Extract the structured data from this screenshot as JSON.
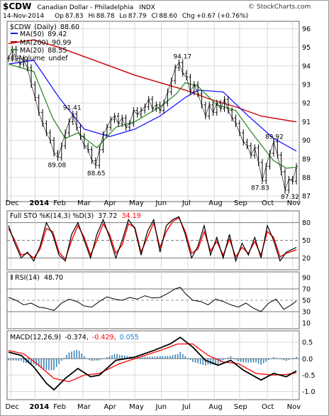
{
  "header": {
    "symbol": "$CDW",
    "name": "Canadian Dollar - Philadelphia",
    "exchange": "INDX",
    "date": "14-Nov-2014",
    "open_label": "Op",
    "open": "87.83",
    "high_label": "Hi",
    "high": "88.78",
    "low_label": "Lo",
    "low": "87.79",
    "close_label": "Cl",
    "close": "88.60",
    "change_label": "Chg",
    "change": "+0.67 (+0.76%)",
    "credit": "© StockCharts.com"
  },
  "colors": {
    "price": "#000000",
    "ma50": "#1a1aff",
    "ma200": "#cc0000",
    "ma20": "#2e8b2e",
    "signal": "#ff0000",
    "histogram": "#3d86b8",
    "rsi_fill": "#b09090",
    "grid": "#d9d9d9"
  },
  "chart_data": [
    {
      "type": "line",
      "panel": "price",
      "title_symbol": "$CDW",
      "title_name": "(Daily)",
      "title_value": "88.60",
      "series": [
        {
          "name": "MA(50)",
          "value": "89.42"
        },
        {
          "name": "MA(200)",
          "value": "90.99"
        },
        {
          "name": "MA(20)",
          "value": "88.55"
        },
        {
          "name": "Volume",
          "value": "undef"
        }
      ],
      "x_months": [
        "Dec",
        "2014",
        "Feb",
        "Mar",
        "Apr",
        "May",
        "Jun",
        "Jul",
        "Aug",
        "Sep",
        "Oct",
        "Nov"
      ],
      "y_ticks": [
        "96",
        "95",
        "94",
        "93",
        "92",
        "91",
        "90",
        "89",
        "88",
        "87"
      ],
      "ylim": [
        86.7,
        96.4
      ],
      "annotations": [
        "94.17",
        "91.41",
        "89.08",
        "88.65",
        "89.92",
        "87.83",
        "87.32"
      ],
      "close_path": [
        [
          0,
          94.4
        ],
        [
          3,
          94.9
        ],
        [
          6,
          94.4
        ],
        [
          9,
          94.1
        ],
        [
          12,
          94.3
        ],
        [
          15,
          93.9
        ],
        [
          18,
          93.0
        ],
        [
          21,
          92.3
        ],
        [
          24,
          91.5
        ],
        [
          27,
          90.9
        ],
        [
          30,
          90.4
        ],
        [
          33,
          90.0
        ],
        [
          36,
          89.3
        ],
        [
          39,
          89.08
        ],
        [
          42,
          89.7
        ],
        [
          45,
          90.4
        ],
        [
          48,
          91.0
        ],
        [
          51,
          91.41
        ],
        [
          54,
          90.7
        ],
        [
          57,
          90.2
        ],
        [
          60,
          89.7
        ],
        [
          63,
          89.5
        ],
        [
          66,
          88.9
        ],
        [
          69,
          88.65
        ],
        [
          72,
          89.5
        ],
        [
          75,
          90.3
        ],
        [
          78,
          90.7
        ],
        [
          81,
          91.1
        ],
        [
          84,
          91.3
        ],
        [
          87,
          90.9
        ],
        [
          90,
          91.2
        ],
        [
          93,
          90.7
        ],
        [
          96,
          90.9
        ],
        [
          99,
          91.6
        ],
        [
          102,
          91.4
        ],
        [
          105,
          91.6
        ],
        [
          108,
          91.8
        ],
        [
          111,
          92.2
        ],
        [
          114,
          91.7
        ],
        [
          117,
          91.9
        ],
        [
          120,
          91.6
        ],
        [
          123,
          92.0
        ],
        [
          126,
          92.6
        ],
        [
          129,
          93.2
        ],
        [
          132,
          93.9
        ],
        [
          135,
          94.17
        ],
        [
          138,
          93.6
        ],
        [
          141,
          93.4
        ],
        [
          144,
          92.6
        ],
        [
          147,
          93.0
        ],
        [
          150,
          92.5
        ],
        [
          153,
          91.9
        ],
        [
          156,
          91.3
        ],
        [
          159,
          91.9
        ],
        [
          162,
          91.5
        ],
        [
          165,
          92.0
        ],
        [
          168,
          91.7
        ],
        [
          171,
          92.2
        ],
        [
          174,
          91.6
        ],
        [
          177,
          91.2
        ],
        [
          180,
          90.9
        ],
        [
          183,
          90.4
        ],
        [
          186,
          89.9
        ],
        [
          189,
          89.7
        ],
        [
          192,
          89.2
        ],
        [
          195,
          89.6
        ],
        [
          198,
          88.8
        ],
        [
          201,
          87.83
        ],
        [
          204,
          88.6
        ],
        [
          207,
          89.3
        ],
        [
          210,
          89.92
        ],
        [
          213,
          89.2
        ],
        [
          216,
          88.3
        ],
        [
          219,
          87.32
        ],
        [
          222,
          87.9
        ],
        [
          225,
          87.8
        ],
        [
          228,
          88.6
        ]
      ],
      "ma20_path": [
        [
          0,
          94.1
        ],
        [
          20,
          93.7
        ],
        [
          35,
          91.2
        ],
        [
          45,
          90.1
        ],
        [
          55,
          90.4
        ],
        [
          70,
          89.6
        ],
        [
          85,
          90.7
        ],
        [
          100,
          91.0
        ],
        [
          120,
          91.8
        ],
        [
          133,
          92.5
        ],
        [
          140,
          93.1
        ],
        [
          150,
          92.9
        ],
        [
          165,
          91.9
        ],
        [
          180,
          91.6
        ],
        [
          195,
          90.2
        ],
        [
          210,
          88.9
        ],
        [
          220,
          88.5
        ],
        [
          228,
          88.55
        ]
      ],
      "ma50_path": [
        [
          0,
          94.1
        ],
        [
          20,
          94.3
        ],
        [
          40,
          92.3
        ],
        [
          60,
          90.6
        ],
        [
          80,
          90.2
        ],
        [
          100,
          90.6
        ],
        [
          120,
          91.3
        ],
        [
          140,
          92.3
        ],
        [
          150,
          92.7
        ],
        [
          170,
          92.6
        ],
        [
          190,
          91.3
        ],
        [
          210,
          90.1
        ],
        [
          228,
          89.42
        ]
      ],
      "ma200_path": [
        [
          0,
          95.2
        ],
        [
          20,
          95.4
        ],
        [
          40,
          95.0
        ],
        [
          60,
          94.5
        ],
        [
          80,
          94.0
        ],
        [
          100,
          93.5
        ],
        [
          120,
          93.1
        ],
        [
          140,
          92.7
        ],
        [
          160,
          92.2
        ],
        [
          180,
          91.8
        ],
        [
          200,
          91.3
        ],
        [
          228,
          90.99
        ]
      ]
    },
    {
      "type": "line",
      "panel": "stochastic",
      "label": "Full STO %K(14,3) %D(3)",
      "k_value": "37.72",
      "d_value": "34.19",
      "y_ticks": [
        "80",
        "50",
        "20"
      ],
      "ylim": [
        0,
        100
      ],
      "k_path": [
        [
          0,
          75
        ],
        [
          5,
          45
        ],
        [
          10,
          20
        ],
        [
          15,
          30
        ],
        [
          20,
          15
        ],
        [
          25,
          40
        ],
        [
          30,
          80
        ],
        [
          35,
          60
        ],
        [
          40,
          25
        ],
        [
          45,
          15
        ],
        [
          50,
          60
        ],
        [
          55,
          80
        ],
        [
          60,
          50
        ],
        [
          65,
          20
        ],
        [
          70,
          60
        ],
        [
          75,
          85
        ],
        [
          80,
          55
        ],
        [
          85,
          20
        ],
        [
          90,
          50
        ],
        [
          95,
          85
        ],
        [
          100,
          70
        ],
        [
          105,
          25
        ],
        [
          110,
          65
        ],
        [
          115,
          85
        ],
        [
          120,
          30
        ],
        [
          125,
          75
        ],
        [
          130,
          85
        ],
        [
          135,
          90
        ],
        [
          140,
          60
        ],
        [
          145,
          20
        ],
        [
          150,
          40
        ],
        [
          155,
          75
        ],
        [
          160,
          25
        ],
        [
          165,
          55
        ],
        [
          170,
          20
        ],
        [
          175,
          60
        ],
        [
          180,
          15
        ],
        [
          185,
          45
        ],
        [
          190,
          25
        ],
        [
          195,
          55
        ],
        [
          200,
          20
        ],
        [
          205,
          75
        ],
        [
          210,
          50
        ],
        [
          215,
          15
        ],
        [
          220,
          30
        ],
        [
          228,
          38
        ]
      ],
      "d_path": [
        [
          0,
          70
        ],
        [
          5,
          50
        ],
        [
          10,
          25
        ],
        [
          15,
          28
        ],
        [
          20,
          20
        ],
        [
          25,
          35
        ],
        [
          30,
          70
        ],
        [
          35,
          65
        ],
        [
          40,
          30
        ],
        [
          45,
          18
        ],
        [
          50,
          50
        ],
        [
          55,
          75
        ],
        [
          60,
          55
        ],
        [
          65,
          25
        ],
        [
          70,
          50
        ],
        [
          75,
          78
        ],
        [
          80,
          60
        ],
        [
          85,
          28
        ],
        [
          90,
          42
        ],
        [
          95,
          78
        ],
        [
          100,
          72
        ],
        [
          105,
          30
        ],
        [
          110,
          55
        ],
        [
          115,
          80
        ],
        [
          120,
          38
        ],
        [
          125,
          65
        ],
        [
          130,
          82
        ],
        [
          135,
          88
        ],
        [
          140,
          65
        ],
        [
          145,
          28
        ],
        [
          150,
          35
        ],
        [
          155,
          65
        ],
        [
          160,
          32
        ],
        [
          165,
          48
        ],
        [
          170,
          25
        ],
        [
          175,
          52
        ],
        [
          180,
          22
        ],
        [
          185,
          38
        ],
        [
          190,
          28
        ],
        [
          195,
          48
        ],
        [
          200,
          25
        ],
        [
          205,
          65
        ],
        [
          210,
          55
        ],
        [
          215,
          22
        ],
        [
          220,
          28
        ],
        [
          228,
          34
        ]
      ]
    },
    {
      "type": "line",
      "panel": "rsi",
      "label": "RSI(14)",
      "value": "48.70",
      "y_ticks": [
        "90",
        "70",
        "50",
        "30",
        "10"
      ],
      "ylim": [
        0,
        100
      ],
      "rsi_path": [
        [
          0,
          55
        ],
        [
          6,
          50
        ],
        [
          12,
          42
        ],
        [
          18,
          45
        ],
        [
          24,
          38
        ],
        [
          30,
          36
        ],
        [
          36,
          32
        ],
        [
          42,
          45
        ],
        [
          48,
          52
        ],
        [
          54,
          48
        ],
        [
          60,
          40
        ],
        [
          66,
          38
        ],
        [
          72,
          48
        ],
        [
          78,
          56
        ],
        [
          84,
          52
        ],
        [
          90,
          50
        ],
        [
          96,
          55
        ],
        [
          102,
          52
        ],
        [
          108,
          58
        ],
        [
          114,
          54
        ],
        [
          120,
          55
        ],
        [
          126,
          62
        ],
        [
          132,
          70
        ],
        [
          136,
          73
        ],
        [
          140,
          62
        ],
        [
          146,
          50
        ],
        [
          152,
          48
        ],
        [
          158,
          42
        ],
        [
          164,
          52
        ],
        [
          170,
          48
        ],
        [
          176,
          42
        ],
        [
          182,
          38
        ],
        [
          188,
          45
        ],
        [
          194,
          36
        ],
        [
          200,
          30
        ],
        [
          206,
          45
        ],
        [
          212,
          52
        ],
        [
          218,
          34
        ],
        [
          224,
          42
        ],
        [
          228,
          48.7
        ]
      ]
    },
    {
      "type": "line",
      "panel": "macd",
      "label": "MACD(12,26,9)",
      "macd_value": "-0.374",
      "signal_value": "-0.429",
      "histogram_value": "0.055",
      "y_ticks": [
        "0.5",
        "0.0",
        "-0.5",
        "-1.0"
      ],
      "ylim": [
        -1.25,
        0.85
      ],
      "macd_path": [
        [
          0,
          0.2
        ],
        [
          10,
          0.1
        ],
        [
          20,
          -0.25
        ],
        [
          30,
          -0.75
        ],
        [
          36,
          -0.95
        ],
        [
          45,
          -0.6
        ],
        [
          55,
          -0.3
        ],
        [
          65,
          -0.55
        ],
        [
          72,
          -0.5
        ],
        [
          85,
          -0.05
        ],
        [
          100,
          0.05
        ],
        [
          115,
          0.25
        ],
        [
          128,
          0.45
        ],
        [
          136,
          0.65
        ],
        [
          146,
          0.35
        ],
        [
          156,
          -0.05
        ],
        [
          166,
          -0.2
        ],
        [
          176,
          -0.05
        ],
        [
          186,
          -0.35
        ],
        [
          200,
          -0.65
        ],
        [
          210,
          -0.45
        ],
        [
          220,
          -0.55
        ],
        [
          228,
          -0.374
        ]
      ],
      "signal_path": [
        [
          0,
          0.25
        ],
        [
          12,
          0.15
        ],
        [
          24,
          -0.2
        ],
        [
          36,
          -0.6
        ],
        [
          48,
          -0.7
        ],
        [
          60,
          -0.5
        ],
        [
          72,
          -0.45
        ],
        [
          88,
          -0.15
        ],
        [
          104,
          0.05
        ],
        [
          120,
          0.25
        ],
        [
          134,
          0.45
        ],
        [
          146,
          0.45
        ],
        [
          158,
          0.1
        ],
        [
          170,
          -0.1
        ],
        [
          182,
          -0.15
        ],
        [
          196,
          -0.45
        ],
        [
          210,
          -0.5
        ],
        [
          220,
          -0.48
        ],
        [
          228,
          -0.429
        ]
      ]
    }
  ]
}
